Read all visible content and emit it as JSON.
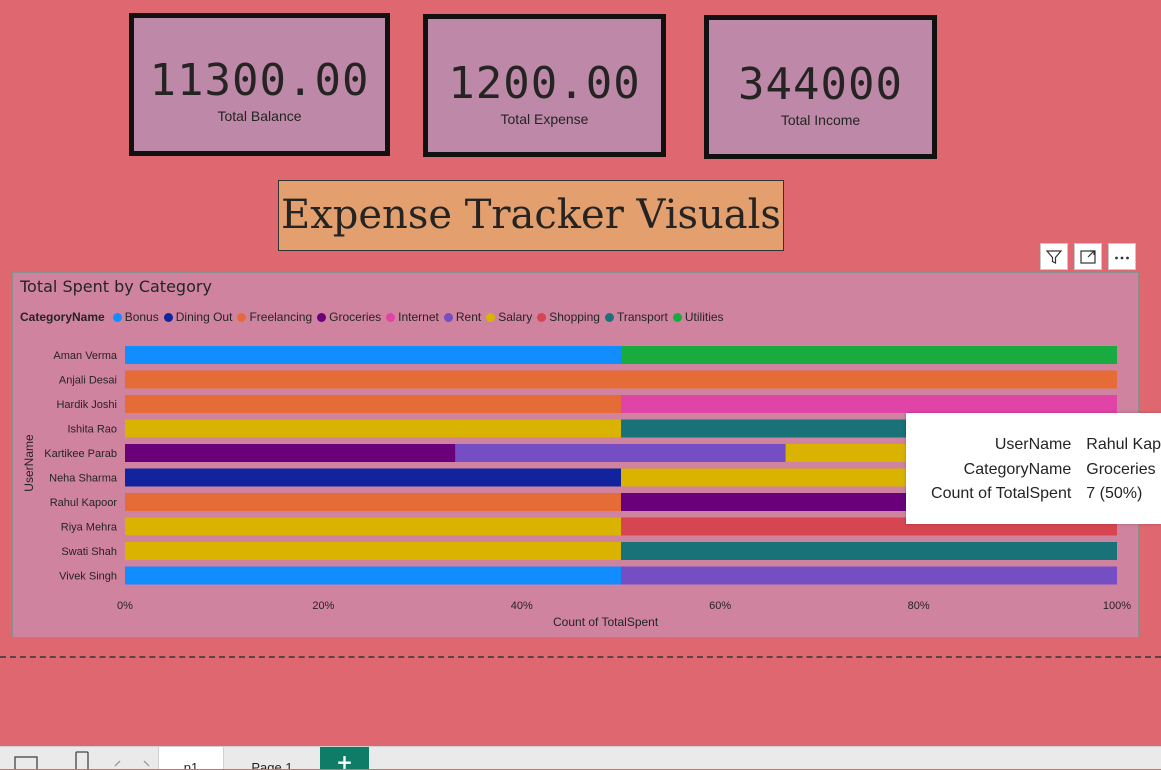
{
  "cards": [
    {
      "value": "11300.00",
      "label": "Total Balance"
    },
    {
      "value": "1200.00",
      "label": "Total Expense"
    },
    {
      "value": "344000",
      "label": "Total Income"
    }
  ],
  "banner": {
    "title": "Expense Tracker Visuals"
  },
  "visual_header": {
    "filter_icon": "filter-icon",
    "focus_icon": "focus-mode-icon",
    "more_icon": "more-options-icon"
  },
  "chart_data": {
    "type": "bar",
    "orientation": "horizontal",
    "stacked": "100%",
    "title": "Total Spent by Category",
    "legend_title": "CategoryName",
    "legend": [
      {
        "name": "Bonus",
        "color": "#118dff"
      },
      {
        "name": "Dining Out",
        "color": "#12239e"
      },
      {
        "name": "Freelancing",
        "color": "#e66c37"
      },
      {
        "name": "Groceries",
        "color": "#6b007b"
      },
      {
        "name": "Internet",
        "color": "#e044a7"
      },
      {
        "name": "Rent",
        "color": "#744ec2"
      },
      {
        "name": "Salary",
        "color": "#d9b300"
      },
      {
        "name": "Shopping",
        "color": "#d64550"
      },
      {
        "name": "Transport",
        "color": "#197278"
      },
      {
        "name": "Utilities",
        "color": "#1aab40"
      }
    ],
    "ylabel": "UserName",
    "xlabel": "Count of TotalSpent",
    "xticks": [
      "0%",
      "20%",
      "40%",
      "60%",
      "80%",
      "100%"
    ],
    "xlim": [
      0,
      100
    ],
    "rows": [
      {
        "user": "Aman Verma",
        "segments": [
          {
            "category": "Bonus",
            "pct": 50
          },
          {
            "category": "Utilities",
            "pct": 50
          }
        ]
      },
      {
        "user": "Anjali Desai",
        "segments": [
          {
            "category": "Freelancing",
            "pct": 100
          }
        ]
      },
      {
        "user": "Hardik Joshi",
        "segments": [
          {
            "category": "Freelancing",
            "pct": 50
          },
          {
            "category": "Internet",
            "pct": 50
          }
        ]
      },
      {
        "user": "Ishita Rao",
        "segments": [
          {
            "category": "Salary",
            "pct": 50
          },
          {
            "category": "Transport",
            "pct": 50
          }
        ]
      },
      {
        "user": "Kartikee Parab",
        "segments": [
          {
            "category": "Groceries",
            "pct": 33.3
          },
          {
            "category": "Rent",
            "pct": 33.3
          },
          {
            "category": "Salary",
            "pct": 33.4
          }
        ]
      },
      {
        "user": "Neha Sharma",
        "segments": [
          {
            "category": "Dining Out",
            "pct": 50
          },
          {
            "category": "Salary",
            "pct": 50
          }
        ]
      },
      {
        "user": "Rahul Kapoor",
        "segments": [
          {
            "category": "Freelancing",
            "pct": 50
          },
          {
            "category": "Groceries",
            "pct": 50
          }
        ]
      },
      {
        "user": "Riya Mehra",
        "segments": [
          {
            "category": "Salary",
            "pct": 50
          },
          {
            "category": "Shopping",
            "pct": 50
          }
        ]
      },
      {
        "user": "Swati Shah",
        "segments": [
          {
            "category": "Salary",
            "pct": 50
          },
          {
            "category": "Transport",
            "pct": 50
          }
        ]
      },
      {
        "user": "Vivek Singh",
        "segments": [
          {
            "category": "Bonus",
            "pct": 50
          },
          {
            "category": "Rent",
            "pct": 50
          }
        ]
      }
    ]
  },
  "tooltip": {
    "rows": [
      {
        "key": "UserName",
        "value": "Rahul Kap"
      },
      {
        "key": "CategoryName",
        "value": "Groceries"
      },
      {
        "key": "Count of TotalSpent",
        "value": "7 (50%)"
      }
    ]
  },
  "bottom_bar": {
    "pages": [
      "p1",
      "Page 1"
    ],
    "add_label": "+"
  }
}
